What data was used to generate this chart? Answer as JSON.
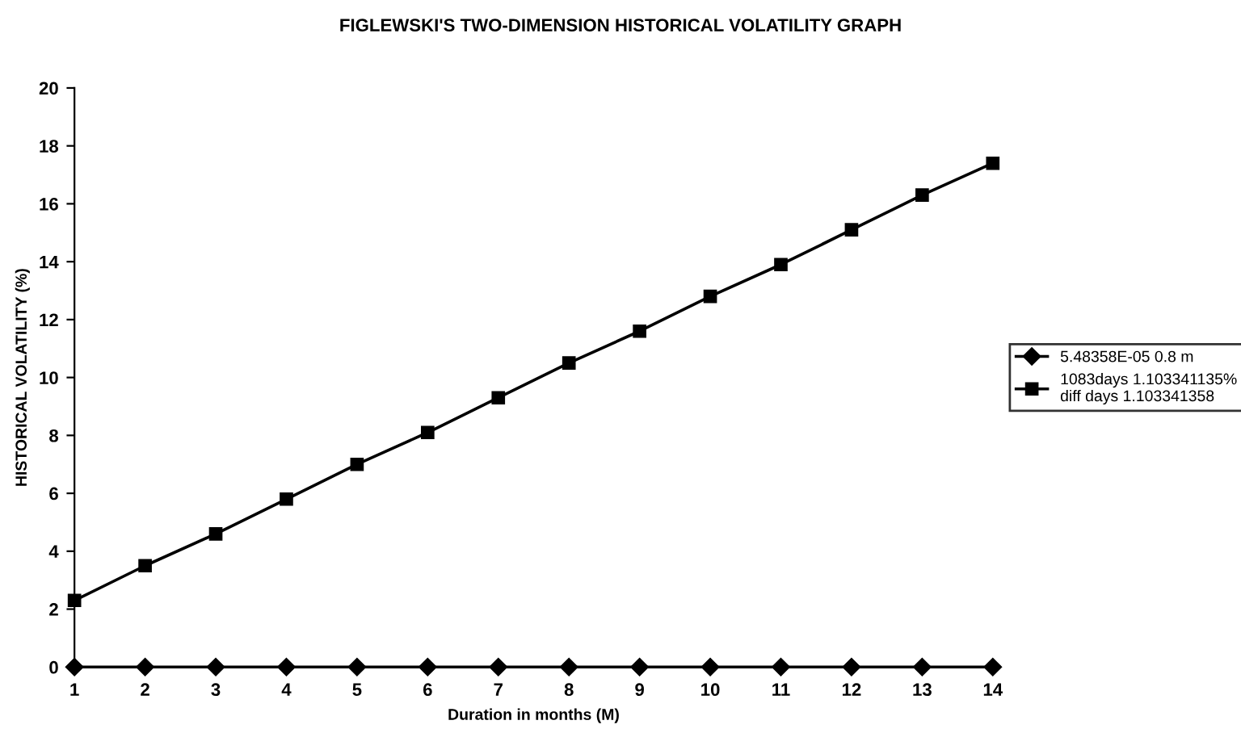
{
  "chart_data": {
    "type": "line",
    "title": "FIGLEWSKI'S TWO-DIMENSION HISTORICAL VOLATILITY GRAPH",
    "xlabel": "Duration in months (M)",
    "ylabel": "HISTORICAL VOLATILITY (%)",
    "x": [
      1,
      2,
      3,
      4,
      5,
      6,
      7,
      8,
      9,
      10,
      11,
      12,
      13,
      14
    ],
    "series": [
      {
        "name": "5.48358E-05 0.8 m",
        "color": "#000000",
        "marker": "diamond",
        "values": [
          0,
          0,
          0,
          0,
          0,
          0,
          0,
          0,
          0,
          0,
          0,
          0,
          0,
          0
        ]
      },
      {
        "name": "1083days 1.103341135%\ndiff days 1.103341358",
        "color": "#000000",
        "marker": "square",
        "values": [
          2.3,
          3.5,
          4.6,
          5.8,
          7.0,
          8.1,
          9.3,
          10.5,
          11.6,
          12.8,
          13.9,
          15.1,
          16.3,
          17.4
        ]
      }
    ],
    "xlim": [
      1,
      14
    ],
    "xticks": [
      1,
      2,
      3,
      4,
      5,
      6,
      7,
      8,
      9,
      10,
      11,
      12,
      13,
      14
    ],
    "ylim": [
      0,
      20
    ],
    "yticks": [
      0,
      2,
      4,
      6,
      8,
      10,
      12,
      14,
      16,
      18,
      20
    ],
    "grid": false,
    "legend": "right",
    "line_style": "solid"
  }
}
